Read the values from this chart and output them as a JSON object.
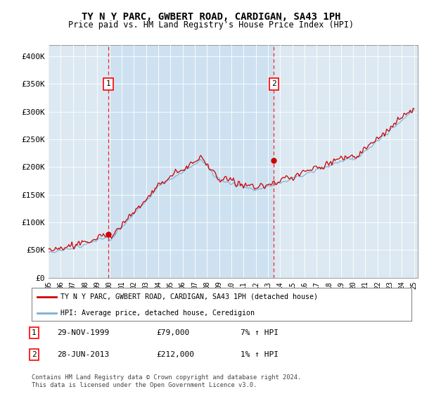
{
  "title": "TY N Y PARC, GWBERT ROAD, CARDIGAN, SA43 1PH",
  "subtitle": "Price paid vs. HM Land Registry's House Price Index (HPI)",
  "hpi_color": "#7bafd4",
  "price_color": "#cc0000",
  "shade_color": "#d8e8f4",
  "background_color": "#dce8f0",
  "ylim": [
    0,
    420000
  ],
  "yticks": [
    0,
    50000,
    100000,
    150000,
    200000,
    250000,
    300000,
    350000,
    400000
  ],
  "ytick_labels": [
    "£0",
    "£50K",
    "£100K",
    "£150K",
    "£200K",
    "£250K",
    "£300K",
    "£350K",
    "£400K"
  ],
  "sale1_year": 1999.91,
  "sale1_price": 79000,
  "sale2_year": 2013.49,
  "sale2_price": 212000,
  "legend_label_red": "TY N Y PARC, GWBERT ROAD, CARDIGAN, SA43 1PH (detached house)",
  "legend_label_blue": "HPI: Average price, detached house, Ceredigion",
  "annotation1_label": "1",
  "annotation1_date": "29-NOV-1999",
  "annotation1_price": "£79,000",
  "annotation1_hpi": "7% ↑ HPI",
  "annotation2_label": "2",
  "annotation2_date": "28-JUN-2013",
  "annotation2_price": "£212,000",
  "annotation2_hpi": "1% ↑ HPI",
  "footer": "Contains HM Land Registry data © Crown copyright and database right 2024.\nThis data is licensed under the Open Government Licence v3.0."
}
